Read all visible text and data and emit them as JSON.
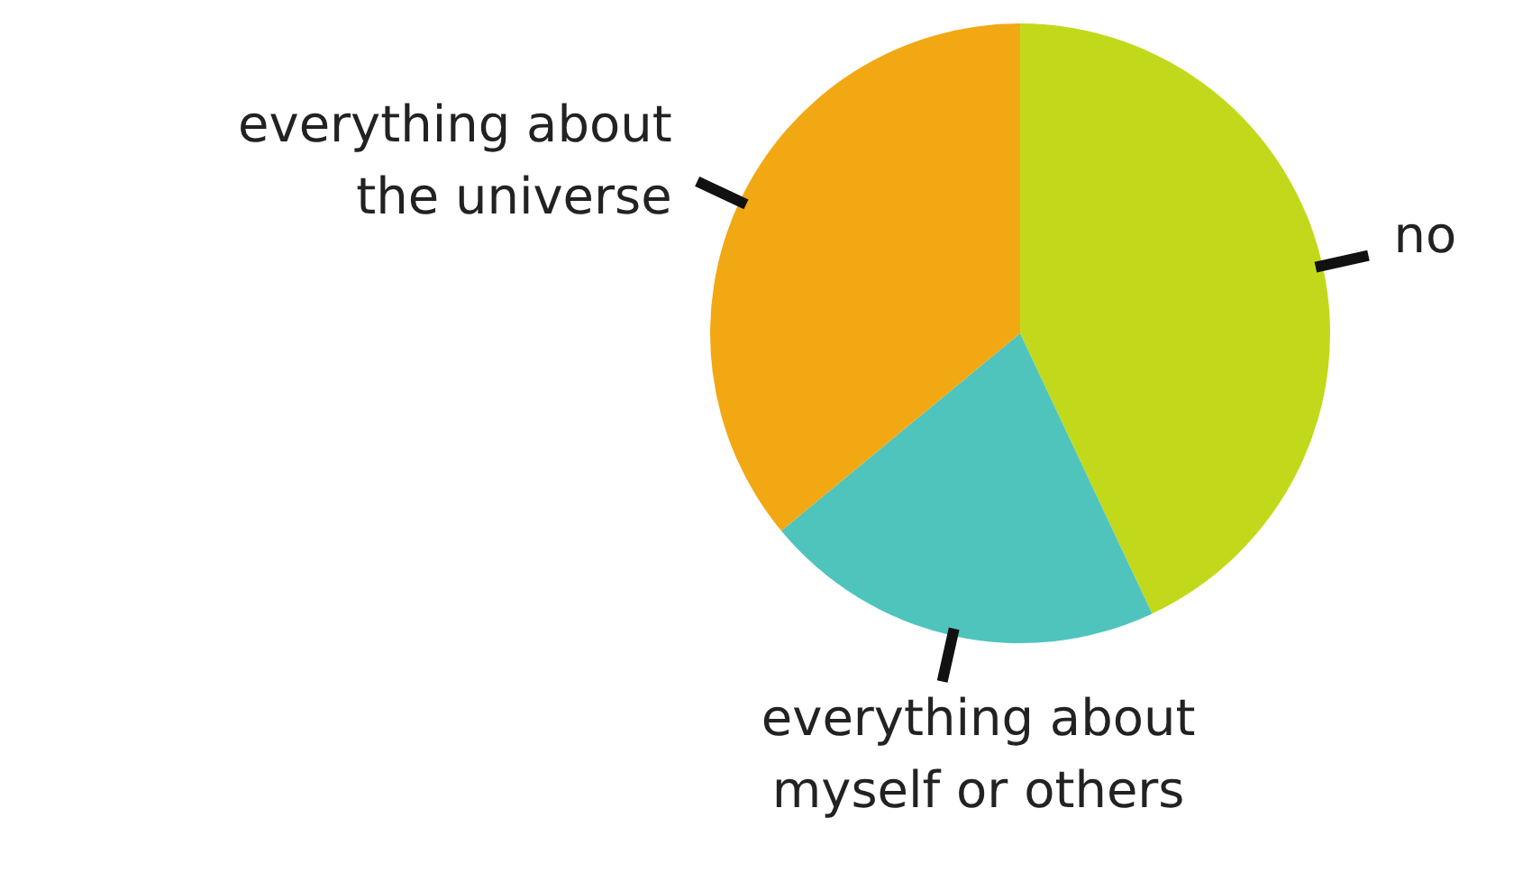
{
  "chart_data": {
    "type": "pie",
    "categories": [
      "no",
      "everything about myself or others",
      "everything about the universe"
    ],
    "values": [
      43,
      21,
      36
    ],
    "colors": [
      "#c2d91b",
      "#4fc4bd",
      "#f2a813"
    ],
    "legend": false
  }
}
